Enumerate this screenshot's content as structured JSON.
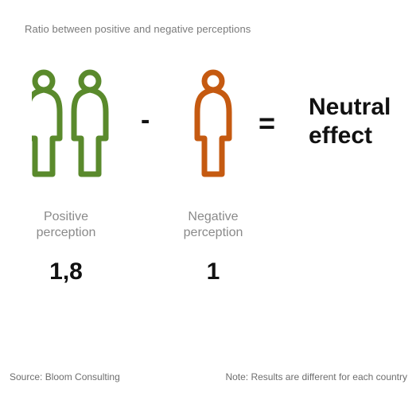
{
  "subtitle": "Ratio between positive and negative perceptions",
  "colors": {
    "positive": "#5a8a2c",
    "negative": "#c55a11"
  },
  "icons": {
    "positive": "person-outline-icon",
    "negative": "person-outline-icon"
  },
  "operators": {
    "minus": "-",
    "equals": "="
  },
  "result_line1": "Neutral",
  "result_line2": "effect",
  "chart_data": {
    "type": "pictogram",
    "title": "",
    "subtitle": "Ratio between positive and negative perceptions",
    "categories": [
      "Positive perception",
      "Negative perception"
    ],
    "values": [
      1.8,
      1
    ],
    "value_labels": [
      "1,8",
      "1"
    ],
    "result": "Neutral effect"
  },
  "labels": {
    "positive_line1": "Positive",
    "positive_line2": "perception",
    "negative_line1": "Negative",
    "negative_line2": "perception"
  },
  "values": {
    "positive": "1,8",
    "negative": "1"
  },
  "footer": {
    "source": "Source: Bloom Consulting",
    "note": "Note: Results are different for each country"
  }
}
